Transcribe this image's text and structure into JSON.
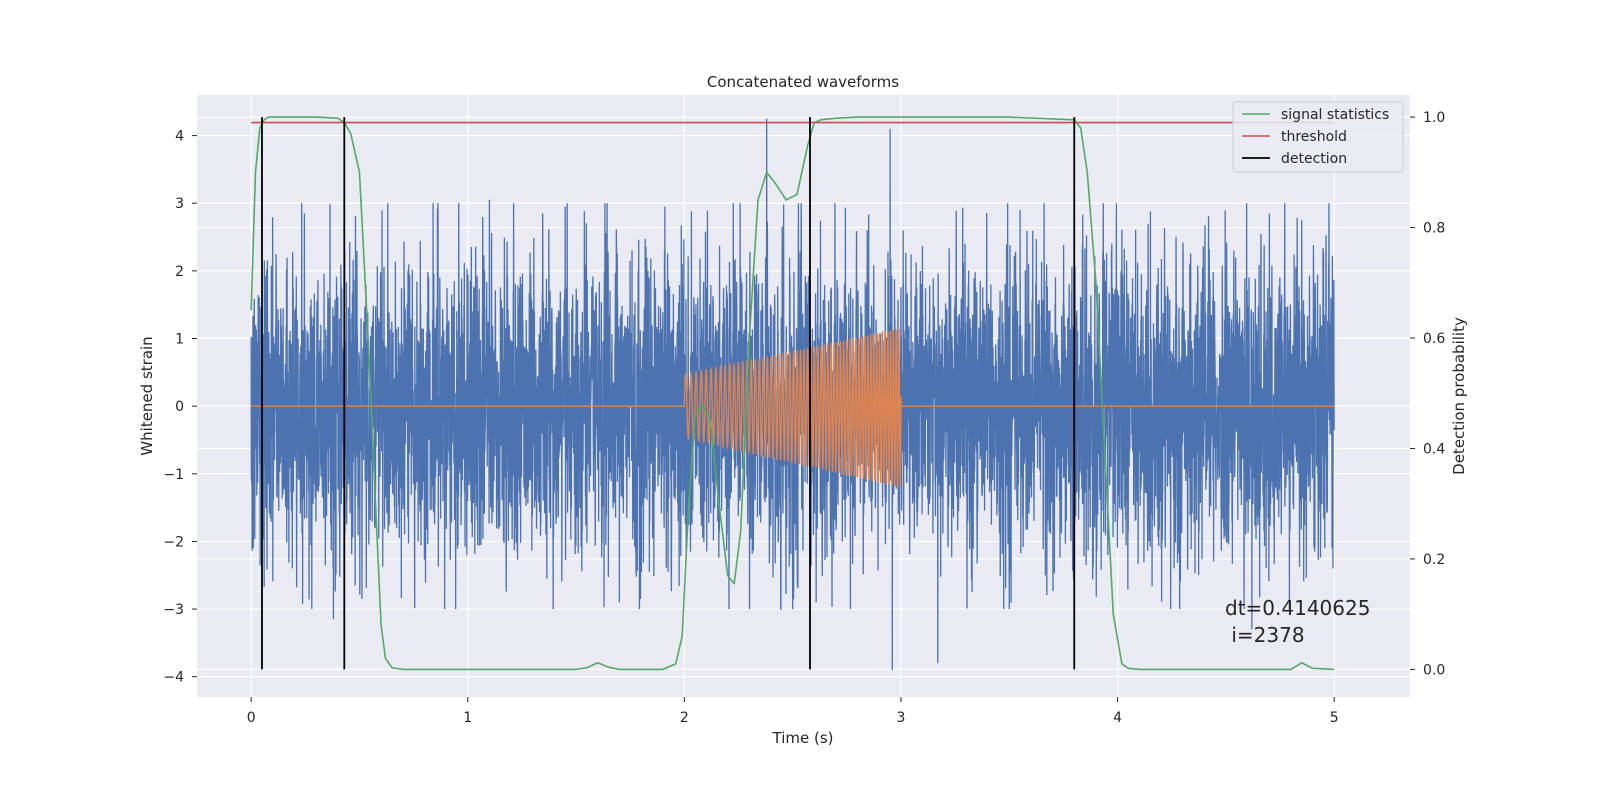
{
  "chart_data": {
    "type": "line",
    "title": "Concatenated waveforms",
    "xlabel": "Time (s)",
    "ylabel": "Whitened strain",
    "y2label": "Detection probability",
    "xlim": [
      -0.25,
      5.35
    ],
    "ylim": [
      -4.3,
      4.6
    ],
    "y2lim": [
      -0.05,
      1.04
    ],
    "x_ticks": [
      0,
      1,
      2,
      3,
      4,
      5
    ],
    "y_ticks": [
      -4,
      -3,
      -2,
      -1,
      0,
      1,
      2,
      3,
      4
    ],
    "y2_ticks": [
      0.0,
      0.2,
      0.4,
      0.6,
      0.8,
      1.0
    ],
    "grid": true,
    "legend_position": "top-right",
    "series": [
      {
        "name": "",
        "axis": "left",
        "color": "#4c72b0",
        "kind": "noise",
        "x_range": [
          0,
          5
        ],
        "typical_amplitude": 1.3,
        "extreme_points": [
          {
            "x": 0.01,
            "y": 2.6
          },
          {
            "x": 0.01,
            "y": -2.1
          },
          {
            "x": 0.38,
            "y": -3.15
          },
          {
            "x": 1.1,
            "y": 3.05
          },
          {
            "x": 1.45,
            "y": 2.95
          },
          {
            "x": 1.7,
            "y": -2.9
          },
          {
            "x": 1.91,
            "y": 2.95
          },
          {
            "x": 2.38,
            "y": 4.25
          },
          {
            "x": 2.95,
            "y": 4.1
          },
          {
            "x": 2.96,
            "y": -3.9
          },
          {
            "x": 3.17,
            "y": -3.8
          },
          {
            "x": 3.55,
            "y": 2.9
          },
          {
            "x": 4.62,
            "y": -3.3
          },
          {
            "x": 4.85,
            "y": 2.75
          },
          {
            "x": 4.99,
            "y": -2.1
          }
        ]
      },
      {
        "name": "",
        "axis": "left",
        "color": "#dd8452",
        "kind": "chirp",
        "x_range": [
          0,
          5
        ],
        "chirp_range": [
          2.0,
          3.0
        ],
        "chirp_upper_envelope": [
          [
            2.0,
            0.47
          ],
          [
            3.0,
            1.15
          ]
        ],
        "chirp_lower_envelope": [
          [
            2.0,
            -0.47
          ],
          [
            3.0,
            -1.2
          ]
        ]
      },
      {
        "name": "signal statistics",
        "axis": "right",
        "color": "#55a868",
        "x": [
          0.0,
          0.02,
          0.04,
          0.06,
          0.08,
          0.1,
          0.15,
          0.2,
          0.3,
          0.4,
          0.43,
          0.46,
          0.5,
          0.54,
          0.58,
          0.6,
          0.62,
          0.65,
          0.7,
          1.0,
          1.5,
          1.55,
          1.6,
          1.65,
          1.7,
          1.9,
          1.96,
          1.99,
          2.02,
          2.05,
          2.08,
          2.12,
          2.16,
          2.2,
          2.23,
          2.26,
          2.3,
          2.34,
          2.38,
          2.42,
          2.47,
          2.52,
          2.57,
          2.6,
          2.63,
          2.7,
          2.8,
          3.0,
          3.5,
          3.8,
          3.83,
          3.86,
          3.9,
          3.94,
          3.98,
          4.02,
          4.05,
          4.1,
          4.5,
          4.8,
          4.85,
          4.9,
          5.0
        ],
        "values": [
          0.65,
          0.9,
          0.98,
          0.995,
          1.0,
          1.0,
          1.0,
          1.0,
          1.0,
          0.998,
          0.99,
          0.97,
          0.9,
          0.6,
          0.25,
          0.08,
          0.02,
          0.003,
          0.0,
          0.0,
          0.0,
          0.003,
          0.012,
          0.004,
          0.0,
          0.0,
          0.01,
          0.06,
          0.3,
          0.46,
          0.48,
          0.45,
          0.3,
          0.17,
          0.155,
          0.25,
          0.6,
          0.85,
          0.9,
          0.88,
          0.85,
          0.86,
          0.95,
          0.99,
          0.995,
          0.998,
          1.0,
          1.0,
          1.0,
          0.995,
          0.98,
          0.9,
          0.7,
          0.4,
          0.1,
          0.01,
          0.002,
          0.0,
          0.0,
          0.0,
          0.012,
          0.002,
          0.0
        ]
      },
      {
        "name": "threshold",
        "axis": "right",
        "color": "#c44e52",
        "x": [
          0,
          5
        ],
        "values": [
          0.99,
          0.99
        ]
      },
      {
        "name": "detection",
        "axis": "right",
        "color": "#000000",
        "kind": "vlines",
        "x": [
          0.05,
          0.43,
          2.58,
          3.8
        ],
        "y_from": 0.0,
        "y_to": 1.0
      }
    ],
    "annotation": {
      "line1": "dt=0.4140625",
      "line2": " i=2378",
      "x": 4.5,
      "y": -3.0
    }
  }
}
